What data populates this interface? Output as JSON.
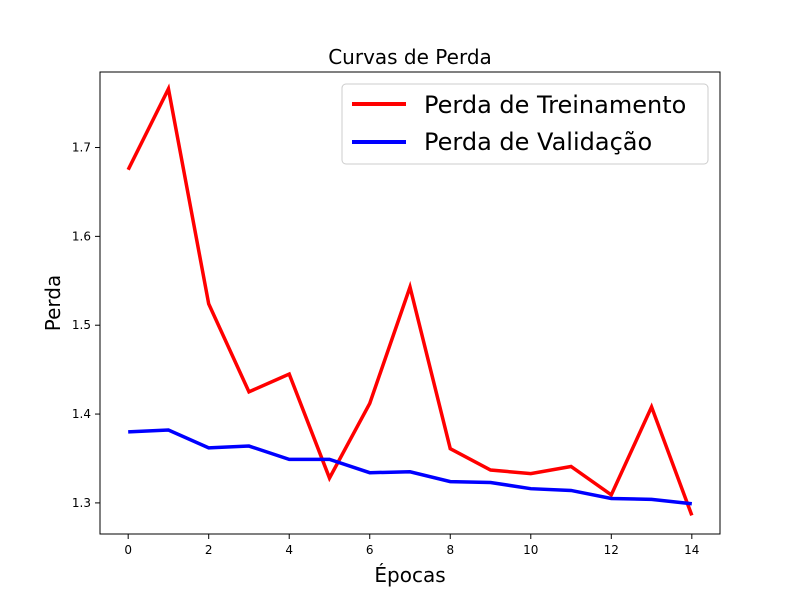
{
  "chart_data": {
    "type": "line",
    "title": "Curvas de Perda",
    "xlabel": "Épocas",
    "ylabel": "Perda",
    "x": [
      0,
      1,
      2,
      3,
      4,
      5,
      6,
      7,
      8,
      9,
      10,
      11,
      12,
      13,
      14
    ],
    "xlim": [
      -0.7,
      14.7
    ],
    "ylim": [
      1.265,
      1.785
    ],
    "xticks": [
      0,
      2,
      4,
      6,
      8,
      10,
      12,
      14
    ],
    "yticks": [
      1.3,
      1.4,
      1.5,
      1.6,
      1.7
    ],
    "xtick_labels": [
      "0",
      "2",
      "4",
      "6",
      "8",
      "10",
      "12",
      "14"
    ],
    "ytick_labels": [
      "1.3",
      "1.4",
      "1.5",
      "1.6",
      "1.7"
    ],
    "grid": false,
    "legend_position": "top-right",
    "series": [
      {
        "name": "Perda de Treinamento",
        "color": "#ff0000",
        "values": [
          1.675,
          1.766,
          1.524,
          1.425,
          1.445,
          1.328,
          1.412,
          1.543,
          1.361,
          1.337,
          1.333,
          1.341,
          1.309,
          1.408,
          1.286
        ]
      },
      {
        "name": "Perda de Validação",
        "color": "#0000ff",
        "values": [
          1.38,
          1.382,
          1.362,
          1.364,
          1.349,
          1.349,
          1.334,
          1.335,
          1.324,
          1.323,
          1.316,
          1.314,
          1.305,
          1.304,
          1.299
        ]
      }
    ]
  }
}
